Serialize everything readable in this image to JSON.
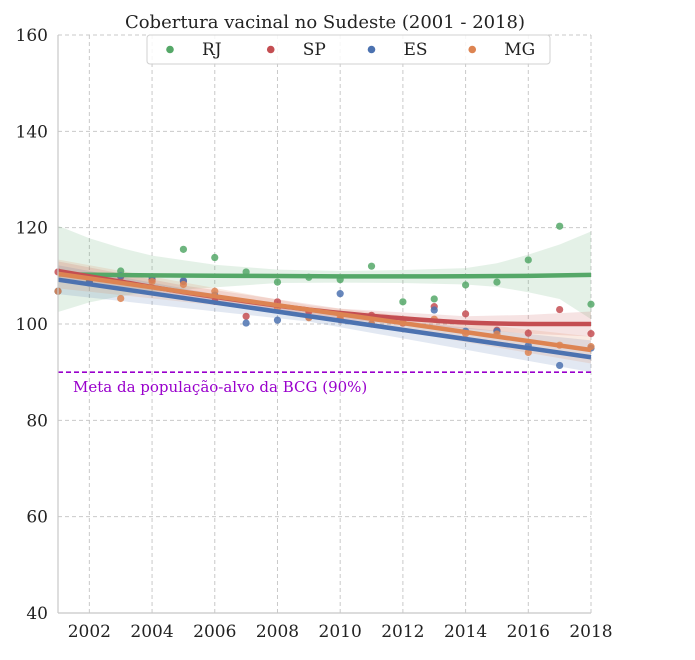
{
  "chart_data": {
    "type": "scatter",
    "title": "Cobertura vacinal no Sudeste (2001 - 2018)",
    "xlabel": "",
    "ylabel": "",
    "xlim": [
      2001,
      2018
    ],
    "ylim": [
      40,
      160
    ],
    "x_ticks": [
      2002,
      2004,
      2006,
      2008,
      2010,
      2012,
      2014,
      2016,
      2018
    ],
    "y_ticks": [
      40,
      60,
      80,
      100,
      120,
      140,
      160
    ],
    "grid": true,
    "legend_placement": "top-center",
    "series": [
      {
        "name": "RJ",
        "color": "#55a868",
        "points": [
          [
            2001,
            106.8
          ],
          [
            2002,
            108.8
          ],
          [
            2003,
            111.0
          ],
          [
            2004,
            109.8
          ],
          [
            2005,
            115.5
          ],
          [
            2006,
            113.8
          ],
          [
            2007,
            110.8
          ],
          [
            2008,
            108.7
          ],
          [
            2009,
            109.7
          ],
          [
            2010,
            109.2
          ],
          [
            2011,
            112.0
          ],
          [
            2012,
            104.6
          ],
          [
            2013,
            105.2
          ],
          [
            2014,
            108.1
          ],
          [
            2015,
            108.7
          ],
          [
            2016,
            113.3
          ],
          [
            2017,
            120.3
          ],
          [
            2018,
            104.1
          ]
        ],
        "fit": [
          [
            2001,
            110.3
          ],
          [
            2004,
            110.1
          ],
          [
            2007,
            110.0
          ],
          [
            2010,
            109.9
          ],
          [
            2013,
            109.9
          ],
          [
            2016,
            110.0
          ],
          [
            2018,
            110.2
          ]
        ],
        "band": [
          [
            2001,
            120.4,
            102.5
          ],
          [
            2002,
            117.8,
            104.5
          ],
          [
            2003,
            115.8,
            105.8
          ],
          [
            2004,
            114.2,
            106.7
          ],
          [
            2006,
            112.3,
            107.6
          ],
          [
            2008,
            111.3,
            108.5
          ],
          [
            2010,
            111.0,
            108.6
          ],
          [
            2012,
            111.2,
            108.5
          ],
          [
            2014,
            111.6,
            108.2
          ],
          [
            2015,
            112.6,
            107.7
          ],
          [
            2016,
            114.4,
            106.6
          ],
          [
            2017,
            116.5,
            105.2
          ],
          [
            2018,
            119.2,
            101.0
          ]
        ]
      },
      {
        "name": "SP",
        "color": "#c44e52",
        "points": [
          [
            2001,
            110.8
          ],
          [
            2002,
            108.6
          ],
          [
            2003,
            109.8
          ],
          [
            2004,
            109.2
          ],
          [
            2005,
            108.8
          ],
          [
            2006,
            104.7
          ],
          [
            2007,
            101.6
          ],
          [
            2008,
            104.6
          ],
          [
            2009,
            102.6
          ],
          [
            2010,
            100.9
          ],
          [
            2011,
            101.8
          ],
          [
            2012,
            100.2
          ],
          [
            2013,
            103.6
          ],
          [
            2014,
            102.1
          ],
          [
            2015,
            98.7
          ],
          [
            2016,
            98.1
          ],
          [
            2017,
            103.0
          ],
          [
            2018,
            98.0
          ]
        ],
        "fit": [
          [
            2001,
            111.0
          ],
          [
            2003,
            108.8
          ],
          [
            2005,
            106.6
          ],
          [
            2007,
            104.7
          ],
          [
            2009,
            103.0
          ],
          [
            2011,
            101.7
          ],
          [
            2013,
            100.7
          ],
          [
            2014,
            100.3
          ],
          [
            2015,
            100.1
          ],
          [
            2016,
            100.0
          ],
          [
            2017,
            100.0
          ],
          [
            2018,
            100.0
          ]
        ],
        "band": [
          [
            2001,
            113.0,
            109.0
          ],
          [
            2005,
            108.0,
            105.2
          ],
          [
            2010,
            103.2,
            101.0
          ],
          [
            2014,
            101.6,
            99.0
          ],
          [
            2016,
            101.9,
            98.0
          ],
          [
            2018,
            102.6,
            97.4
          ]
        ]
      },
      {
        "name": "ES",
        "color": "#4c72b0",
        "points": [
          [
            2001,
            106.8
          ],
          [
            2002,
            108.5
          ],
          [
            2003,
            110.0
          ],
          [
            2004,
            109.8
          ],
          [
            2005,
            109.0
          ],
          [
            2006,
            106.0
          ],
          [
            2007,
            100.2
          ],
          [
            2008,
            100.8
          ],
          [
            2009,
            101.4
          ],
          [
            2010,
            106.3
          ],
          [
            2011,
            100.0
          ],
          [
            2012,
            100.4
          ],
          [
            2013,
            102.9
          ],
          [
            2014,
            98.5
          ],
          [
            2015,
            98.5
          ],
          [
            2016,
            95.5
          ],
          [
            2017,
            91.4
          ],
          [
            2018,
            95.0
          ]
        ],
        "fit": [
          [
            2001,
            109.2
          ],
          [
            2018,
            93.1
          ]
        ],
        "band": [
          [
            2001,
            112.2,
            106.2
          ],
          [
            2009,
            102.6,
            100.5
          ],
          [
            2018,
            96.6,
            90.0
          ]
        ]
      },
      {
        "name": "MG",
        "color": "#dd8452",
        "points": [
          [
            2001,
            106.8
          ],
          [
            2003,
            105.3
          ],
          [
            2004,
            108.8
          ],
          [
            2005,
            108.2
          ],
          [
            2006,
            106.8
          ],
          [
            2008,
            103.4
          ],
          [
            2009,
            101.3
          ],
          [
            2010,
            101.3
          ],
          [
            2011,
            100.0
          ],
          [
            2012,
            100.3
          ],
          [
            2013,
            101.0
          ],
          [
            2014,
            98.0
          ],
          [
            2015,
            97.9
          ],
          [
            2016,
            94.1
          ],
          [
            2017,
            95.6
          ],
          [
            2018,
            95.3
          ]
        ],
        "fit": [
          [
            2001,
            110.4
          ],
          [
            2018,
            94.6
          ]
        ],
        "band": [
          [
            2001,
            113.4,
            107.4
          ],
          [
            2009,
            103.9,
            101.8
          ],
          [
            2018,
            97.4,
            91.8
          ]
        ]
      }
    ],
    "reference_line": {
      "y": 90,
      "label": "Meta da população-alvo da BCG (90%)",
      "color": "#9900cc"
    }
  }
}
